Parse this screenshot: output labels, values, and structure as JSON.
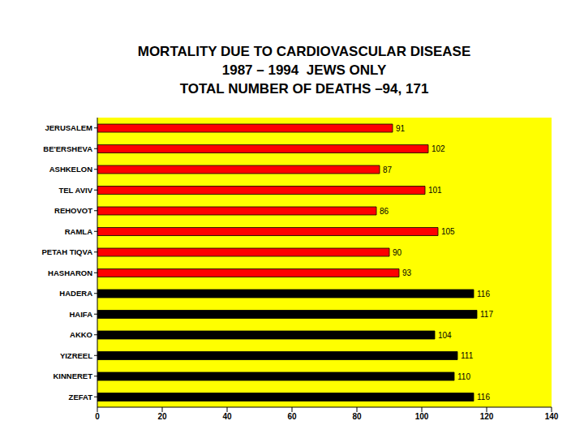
{
  "chart_data": {
    "type": "bar",
    "title": "MORTALITY DUE TO CARDIOVASCULAR DISEASE\n1987 – 1994  JEWS ONLY\nTOTAL NUMBER OF DEATHS –94, 171",
    "orientation": "horizontal",
    "categories": [
      "JERUSALEM",
      "BE'ERSHEVA",
      "ASHKELON",
      "TEL AVIV",
      "REHOVOT",
      "RAMLA",
      "PETAH TIQVA",
      "HASHARON",
      "HADERA",
      "HAIFA",
      "AKKO",
      "YIZREEL",
      "KINNERET",
      "ZEFAT"
    ],
    "values": [
      91,
      102,
      87,
      101,
      86,
      105,
      90,
      93,
      116,
      117,
      104,
      111,
      110,
      116
    ],
    "colors": [
      "#ff0000",
      "#ff0000",
      "#ff0000",
      "#ff0000",
      "#ff0000",
      "#ff0000",
      "#ff0000",
      "#ff0000",
      "#000000",
      "#000000",
      "#000000",
      "#000000",
      "#000000",
      "#000000"
    ],
    "xlim": [
      0,
      140
    ],
    "xticks": [
      0,
      20,
      40,
      60,
      80,
      100,
      120,
      140
    ],
    "grid": false,
    "data_labels": true
  }
}
